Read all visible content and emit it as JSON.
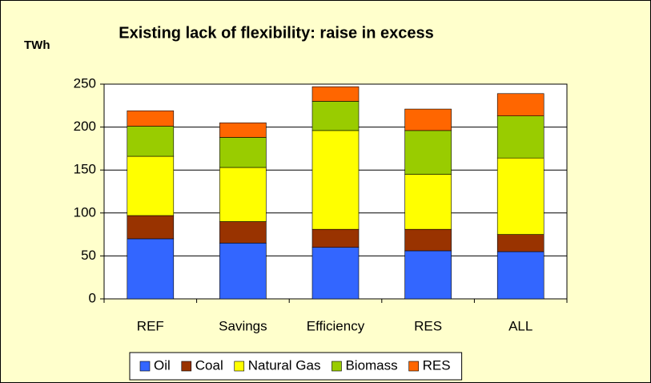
{
  "chart_data": {
    "type": "bar",
    "stacked": true,
    "title": "Existing lack of flexibility: raise in excess",
    "y_label": "TWh",
    "categories": [
      "REF",
      "Savings",
      "Efficiency",
      "RES",
      "ALL"
    ],
    "series": [
      {
        "name": "Oil",
        "color": "#3366FF",
        "values": [
          70,
          65,
          60,
          56,
          55
        ]
      },
      {
        "name": "Coal",
        "color": "#993300",
        "values": [
          27,
          25,
          21,
          25,
          20
        ]
      },
      {
        "name": "Natural Gas",
        "color": "#FFFF00",
        "values": [
          69,
          63,
          115,
          64,
          89
        ]
      },
      {
        "name": "Biomass",
        "color": "#99CC00",
        "values": [
          35,
          35,
          34,
          51,
          49
        ]
      },
      {
        "name": "RES",
        "color": "#FF6600",
        "values": [
          18,
          17,
          17,
          25,
          26
        ]
      }
    ],
    "ylim": [
      0,
      250
    ],
    "yticks": [
      0,
      50,
      100,
      150,
      200,
      250
    ],
    "grid": true,
    "legend": "bottom"
  }
}
